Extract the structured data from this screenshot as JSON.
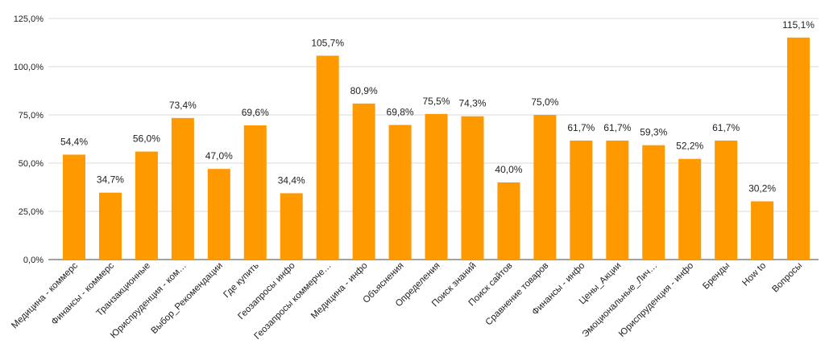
{
  "chart_data": {
    "type": "bar",
    "title": "",
    "xlabel": "",
    "ylabel": "",
    "ylim": [
      0,
      125
    ],
    "yticks": [
      0,
      25,
      50,
      75,
      100,
      125
    ],
    "ytick_labels": [
      "0,0%",
      "25,0%",
      "50,0%",
      "75,0%",
      "100,0%",
      "125,0%"
    ],
    "color": "#FF9900",
    "grid": true,
    "categories": [
      "Медицина - коммерс",
      "Финансы - коммерс",
      "Транзакционные",
      "Юриспруденция - ком…",
      "Выбор_Рекомендации",
      "Где купить",
      "Геозапросы инфо",
      "Геозапросы коммерче…",
      "Медицина - инфо",
      "Объяснения",
      "Определения",
      "Поиск знаний",
      "Поиск сайтов",
      "Сравнение товаров",
      "Финансы - инфо",
      "Цены_Акции",
      "Эмоциональные_Лич…",
      "Юриспруденция - инфо",
      "Бренды",
      "How to",
      "Вопросы"
    ],
    "values": [
      54.4,
      34.7,
      56.0,
      73.4,
      47.0,
      69.6,
      34.4,
      105.7,
      80.9,
      69.8,
      75.5,
      74.3,
      40.0,
      75.0,
      61.7,
      61.7,
      59.3,
      52.2,
      61.7,
      30.2,
      115.1
    ],
    "value_labels": [
      "54,4%",
      "34,7%",
      "56,0%",
      "73,4%",
      "47,0%",
      "69,6%",
      "34,4%",
      "105,7%",
      "80,9%",
      "69,8%",
      "75,5%",
      "74,3%",
      "40,0%",
      "75,0%",
      "61,7%",
      "61,7%",
      "59,3%",
      "52,2%",
      "61,7%",
      "30,2%",
      "115,1%"
    ]
  }
}
